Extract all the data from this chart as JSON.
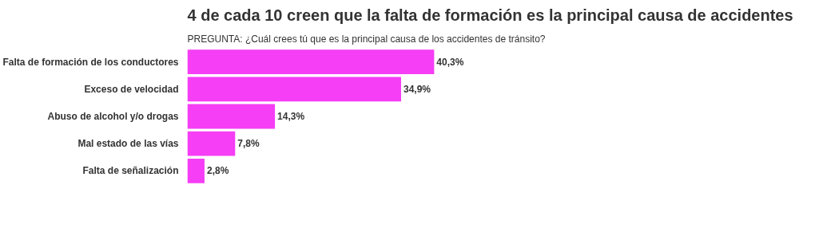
{
  "chart_data": {
    "type": "bar",
    "orientation": "horizontal",
    "relative": false,
    "title": "4 de cada 10 creen que la falta de formación es la principal causa de accidentes",
    "subtitle": "PREGUNTA: ¿Cuál crees tú que es la principal causa de los accidentes de tránsito?",
    "categories": [
      "Falta de formación de los conductores",
      "Exceso de velocidad",
      "Abuso de alcohol y/o drogas",
      "Mal estado de las vías",
      "Falta de señalización"
    ],
    "values": [
      40.3,
      34.9,
      14.3,
      7.8,
      2.8
    ],
    "value_labels": [
      "40,3%",
      "34,9%",
      "14,3%",
      "7,8%",
      "2,8%"
    ],
    "color": "#f53ef5",
    "grid": false
  }
}
